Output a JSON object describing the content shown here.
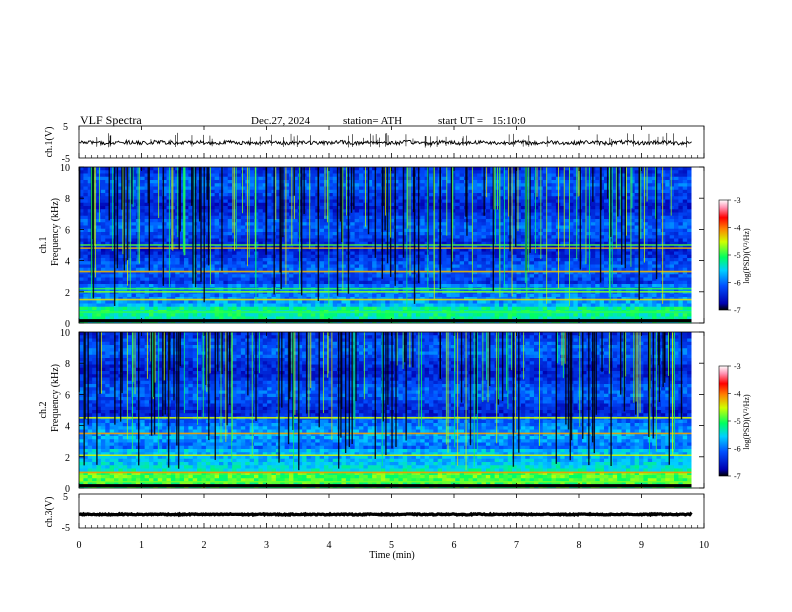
{
  "header": {
    "title": "VLF Spectra",
    "date": "Dec.27, 2024",
    "station": "station= ATH",
    "start_label": "start UT =",
    "start_time": "15:10:0"
  },
  "chart_data": [
    {
      "type": "line",
      "id": "ch1-waveform",
      "ylabel": "ch.1(V)",
      "ylim": [
        -5,
        5
      ],
      "yticks": [
        "5",
        "-5"
      ],
      "xlim": [
        0,
        10
      ],
      "x_data_range": [
        0,
        9.8
      ],
      "baseline": -0.2,
      "noise_amplitude": 0.6,
      "spike_amplitude": 2.2
    },
    {
      "type": "heatmap",
      "id": "ch1-spectrogram",
      "ylabel": "Frequency (kHz)",
      "channel_label": "ch.1",
      "ylim": [
        0,
        10
      ],
      "yticks": [
        "0",
        "2",
        "4",
        "6",
        "8",
        "10"
      ],
      "xlim": [
        0,
        10
      ],
      "x_data_range": [
        0,
        9.8
      ],
      "colorbar": {
        "label": "log(PSD)(V²/Hz)",
        "range": [
          -7,
          -3
        ],
        "ticks": [
          "-3",
          "-4",
          "-5",
          "-6",
          "-7"
        ]
      },
      "bands_khz": [
        0.7,
        1.5,
        2.0,
        2.2,
        3.3,
        4.8,
        5.0
      ]
    },
    {
      "type": "heatmap",
      "id": "ch2-spectrogram",
      "ylabel": "Frequency (kHz)",
      "channel_label": "ch.2",
      "ylim": [
        0,
        10
      ],
      "yticks": [
        "0",
        "2",
        "4",
        "6",
        "8",
        "10"
      ],
      "xlim": [
        0,
        10
      ],
      "x_data_range": [
        0,
        9.8
      ],
      "colorbar": {
        "label": "log(PSD)(V²/Hz)",
        "range": [
          -7,
          -3
        ],
        "ticks": [
          "-3",
          "-4",
          "-5",
          "-6",
          "-7"
        ]
      },
      "bands_khz": [
        0.4,
        1.0,
        2.1,
        3.5,
        4.5
      ]
    },
    {
      "type": "line",
      "id": "ch3-waveform",
      "ylabel": "ch.3(V)",
      "ylim": [
        -5,
        5
      ],
      "yticks": [
        "5",
        "-5"
      ],
      "xlim": [
        0,
        10
      ],
      "x_data_range": [
        0,
        9.8
      ],
      "baseline": -1.0,
      "noise_amplitude": 0.15
    }
  ],
  "x_axis": {
    "label": "Time (min)",
    "ticks": [
      "0",
      "1",
      "2",
      "3",
      "4",
      "5",
      "6",
      "7",
      "8",
      "9",
      "10"
    ]
  },
  "colors": {
    "background_spectrum": "#0a2a9a",
    "line": "#000000"
  }
}
